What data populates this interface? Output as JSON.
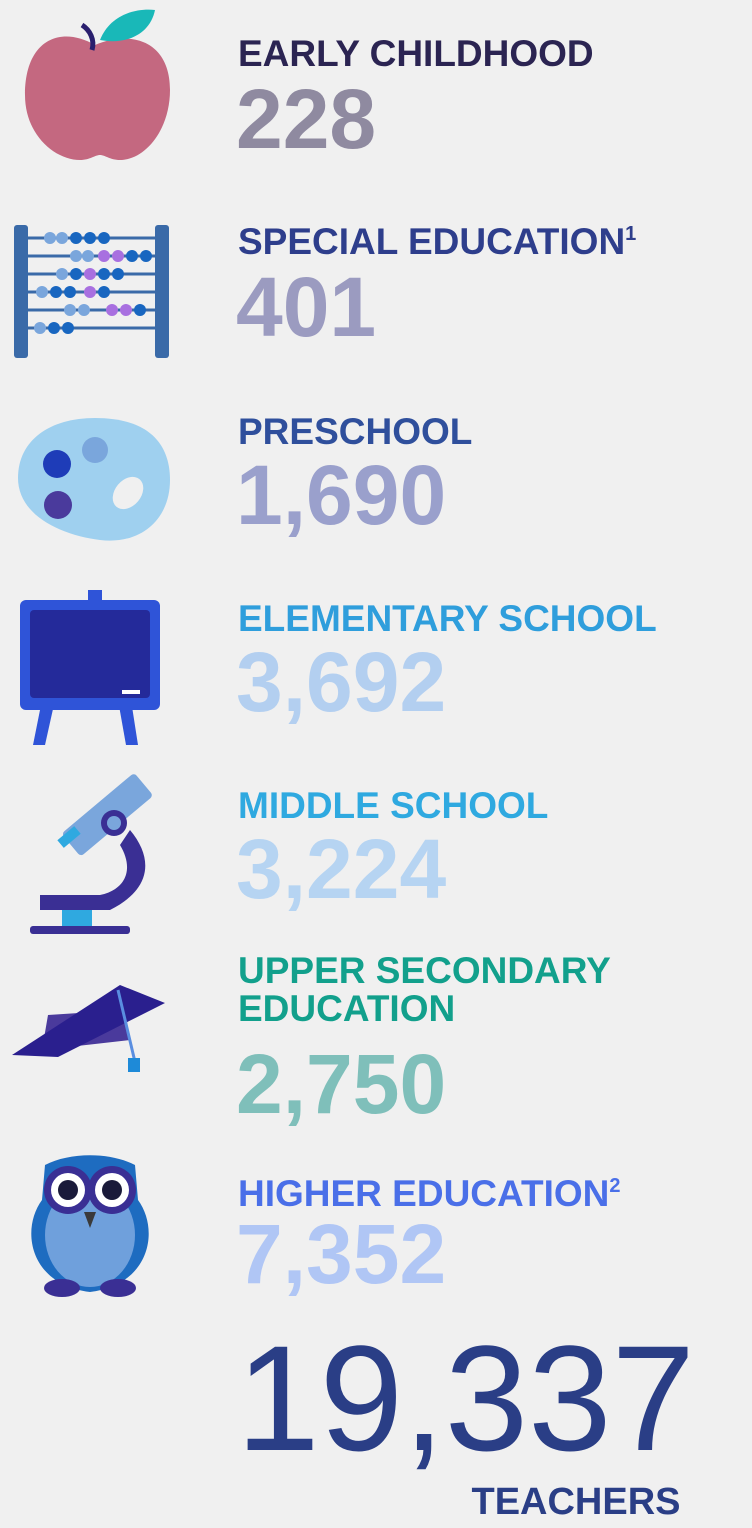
{
  "items": [
    {
      "label": "EARLY CHILDHOOD",
      "value": "228",
      "label_color": "#2b2452",
      "value_color": "#8f8aa0"
    },
    {
      "label": "SPECIAL EDUCATION",
      "note": "1",
      "value": "401",
      "label_color": "#2e3e8c",
      "value_color": "#9b9bc0"
    },
    {
      "label": "PRESCHOOL",
      "value": "1,690",
      "label_color": "#2f4f9c",
      "value_color": "#9aa0cc"
    },
    {
      "label": "ELEMENTARY SCHOOL",
      "value": "3,692",
      "label_color": "#2f9edc",
      "value_color": "#b3cff0"
    },
    {
      "label": "MIDDLE SCHOOL",
      "value": "3,224",
      "label_color": "#2fa9e0",
      "value_color": "#b6d4f2"
    },
    {
      "label": [
        "UPPER SECONDARY",
        "EDUCATION"
      ],
      "value": "2,750",
      "label_color": "#12a08c",
      "value_color": "#7fbfba"
    },
    {
      "label": "HIGHER EDUCATION",
      "note": "2",
      "value": "7,352",
      "label_color": "#4a6fe8",
      "value_color": "#b0c6f5"
    }
  ],
  "total": {
    "value": "19,337",
    "caption": "TEACHERS"
  }
}
